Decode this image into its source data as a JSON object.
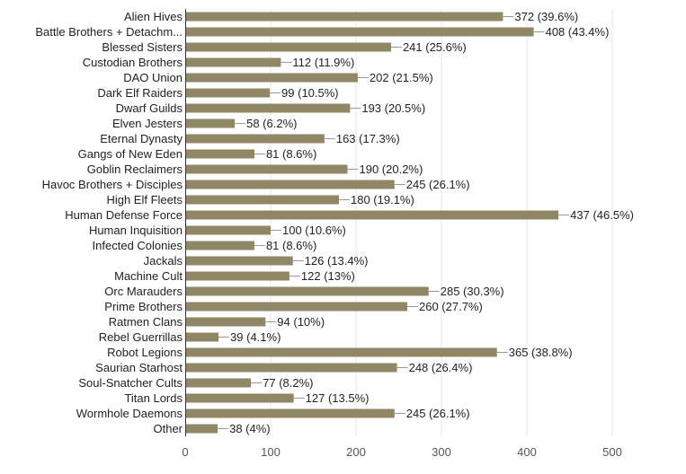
{
  "chart_data": {
    "type": "bar",
    "orientation": "horizontal",
    "title": "",
    "xlabel": "",
    "ylabel": "",
    "xlim": [
      0,
      500
    ],
    "xticks": [
      0,
      100,
      200,
      300,
      400,
      500
    ],
    "grid": true,
    "bar_color": "#8f8766",
    "categories": [
      "Alien Hives",
      "Battle Brothers + Detachm...",
      "Blessed Sisters",
      "Custodian Brothers",
      "DAO Union",
      "Dark Elf Raiders",
      "Dwarf Guilds",
      "Elven Jesters",
      "Eternal Dynasty",
      "Gangs of New Eden",
      "Goblin Reclaimers",
      "Havoc Brothers + Disciples",
      "High Elf Fleets",
      "Human Defense Force",
      "Human Inquisition",
      "Infected Colonies",
      "Jackals",
      "Machine Cult",
      "Orc Marauders",
      "Prime Brothers",
      "Ratmen Clans",
      "Rebel Guerrillas",
      "Robot Legions",
      "Saurian Starhost",
      "Soul-Snatcher Cults",
      "Titan Lords",
      "Wormhole Daemons",
      "Other"
    ],
    "values": [
      372,
      408,
      241,
      112,
      202,
      99,
      193,
      58,
      163,
      81,
      190,
      245,
      180,
      437,
      100,
      81,
      126,
      122,
      285,
      260,
      94,
      39,
      365,
      248,
      77,
      127,
      245,
      38
    ],
    "value_labels": [
      "372 (39.6%)",
      "408 (43.4%)",
      "241 (25.6%)",
      "112 (11.9%)",
      "202 (21.5%)",
      "99 (10.5%)",
      "193 (20.5%)",
      "58 (6.2%)",
      "163 (17.3%)",
      "81 (8.6%)",
      "190 (20.2%)",
      "245 (26.1%)",
      "180 (19.1%)",
      "437 (46.5%)",
      "100 (10.6%)",
      "81 (8.6%)",
      "126 (13.4%)",
      "122 (13%)",
      "285 (30.3%)",
      "260 (27.7%)",
      "94 (10%)",
      "39 (4.1%)",
      "365 (38.8%)",
      "248 (26.4%)",
      "77 (8.2%)",
      "127 (13.5%)",
      "245 (26.1%)",
      "38 (4%)"
    ]
  }
}
